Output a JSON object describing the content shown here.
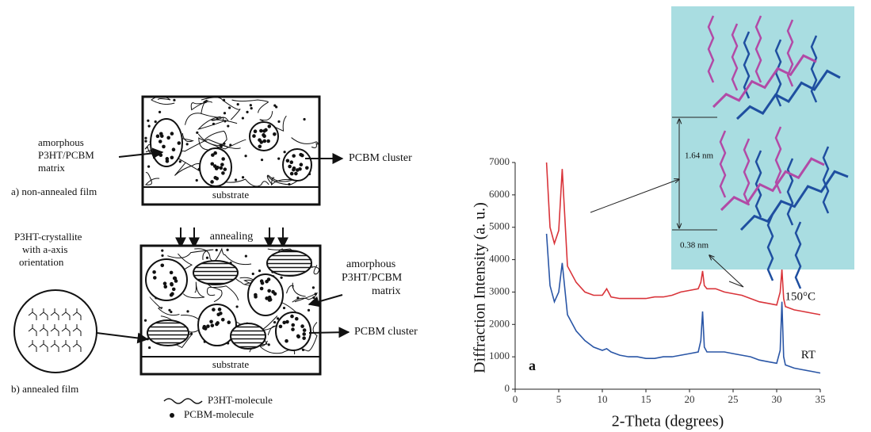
{
  "diagram": {
    "top": {
      "matrix_label": [
        "amorphous",
        "P3HT/PCBM",
        "matrix"
      ],
      "cluster_label": "PCBM cluster",
      "substrate": "substrate",
      "caption": "a) non-annealed film"
    },
    "annealing": "annealing",
    "bottom": {
      "crystallite_label": [
        "P3HT-crystallite",
        "with a-axis",
        "orientation"
      ],
      "matrix_label": [
        "amorphous",
        "P3HT/PCBM",
        "matrix"
      ],
      "cluster_label": "PCBM cluster",
      "substrate": "substrate",
      "caption": "b) annealed film"
    },
    "legend": [
      "P3HT-molecule",
      "PCBM-molecule"
    ]
  },
  "chart_data": {
    "type": "line",
    "xlabel": "2-Theta (degrees)",
    "ylabel": "Diffraction Intensity (a. u.)",
    "annotation": "a",
    "inset_labels": [
      "1.64 nm",
      "0.38 nm"
    ],
    "x": [
      3.6,
      4,
      4.5,
      5,
      5.4,
      6,
      7,
      8,
      9,
      10,
      10.5,
      11,
      12,
      13,
      14,
      15,
      16,
      17,
      18,
      19,
      20,
      21,
      21.3,
      21.5,
      21.7,
      22,
      23,
      24,
      25,
      26,
      27,
      28,
      29,
      30,
      30.4,
      30.6,
      30.8,
      31,
      32,
      33,
      34,
      35
    ],
    "series": [
      {
        "name": "150°C",
        "color": "#d9343a",
        "values": [
          7000,
          5000,
          4500,
          4900,
          6800,
          3800,
          3300,
          3000,
          2900,
          2900,
          3100,
          2850,
          2800,
          2800,
          2800,
          2800,
          2850,
          2850,
          2900,
          3000,
          3050,
          3100,
          3300,
          3650,
          3200,
          3100,
          3100,
          3000,
          2950,
          2900,
          2800,
          2700,
          2650,
          2600,
          3000,
          3700,
          2800,
          2550,
          2450,
          2400,
          2350,
          2300
        ]
      },
      {
        "name": "RT",
        "color": "#2a56a6",
        "values": [
          4800,
          3200,
          2700,
          3000,
          3900,
          2300,
          1800,
          1500,
          1300,
          1200,
          1250,
          1150,
          1050,
          1000,
          1000,
          950,
          950,
          1000,
          1000,
          1050,
          1100,
          1150,
          1500,
          2400,
          1300,
          1150,
          1150,
          1150,
          1100,
          1050,
          1000,
          900,
          850,
          800,
          1200,
          2700,
          1000,
          750,
          650,
          600,
          550,
          500
        ]
      }
    ],
    "xlim": [
      0,
      35
    ],
    "xticks": [
      0,
      5,
      10,
      15,
      20,
      25,
      30,
      35
    ],
    "ylim": [
      0,
      7000
    ],
    "yticks": [
      0,
      1000,
      2000,
      3000,
      4000,
      5000,
      6000,
      7000
    ]
  }
}
